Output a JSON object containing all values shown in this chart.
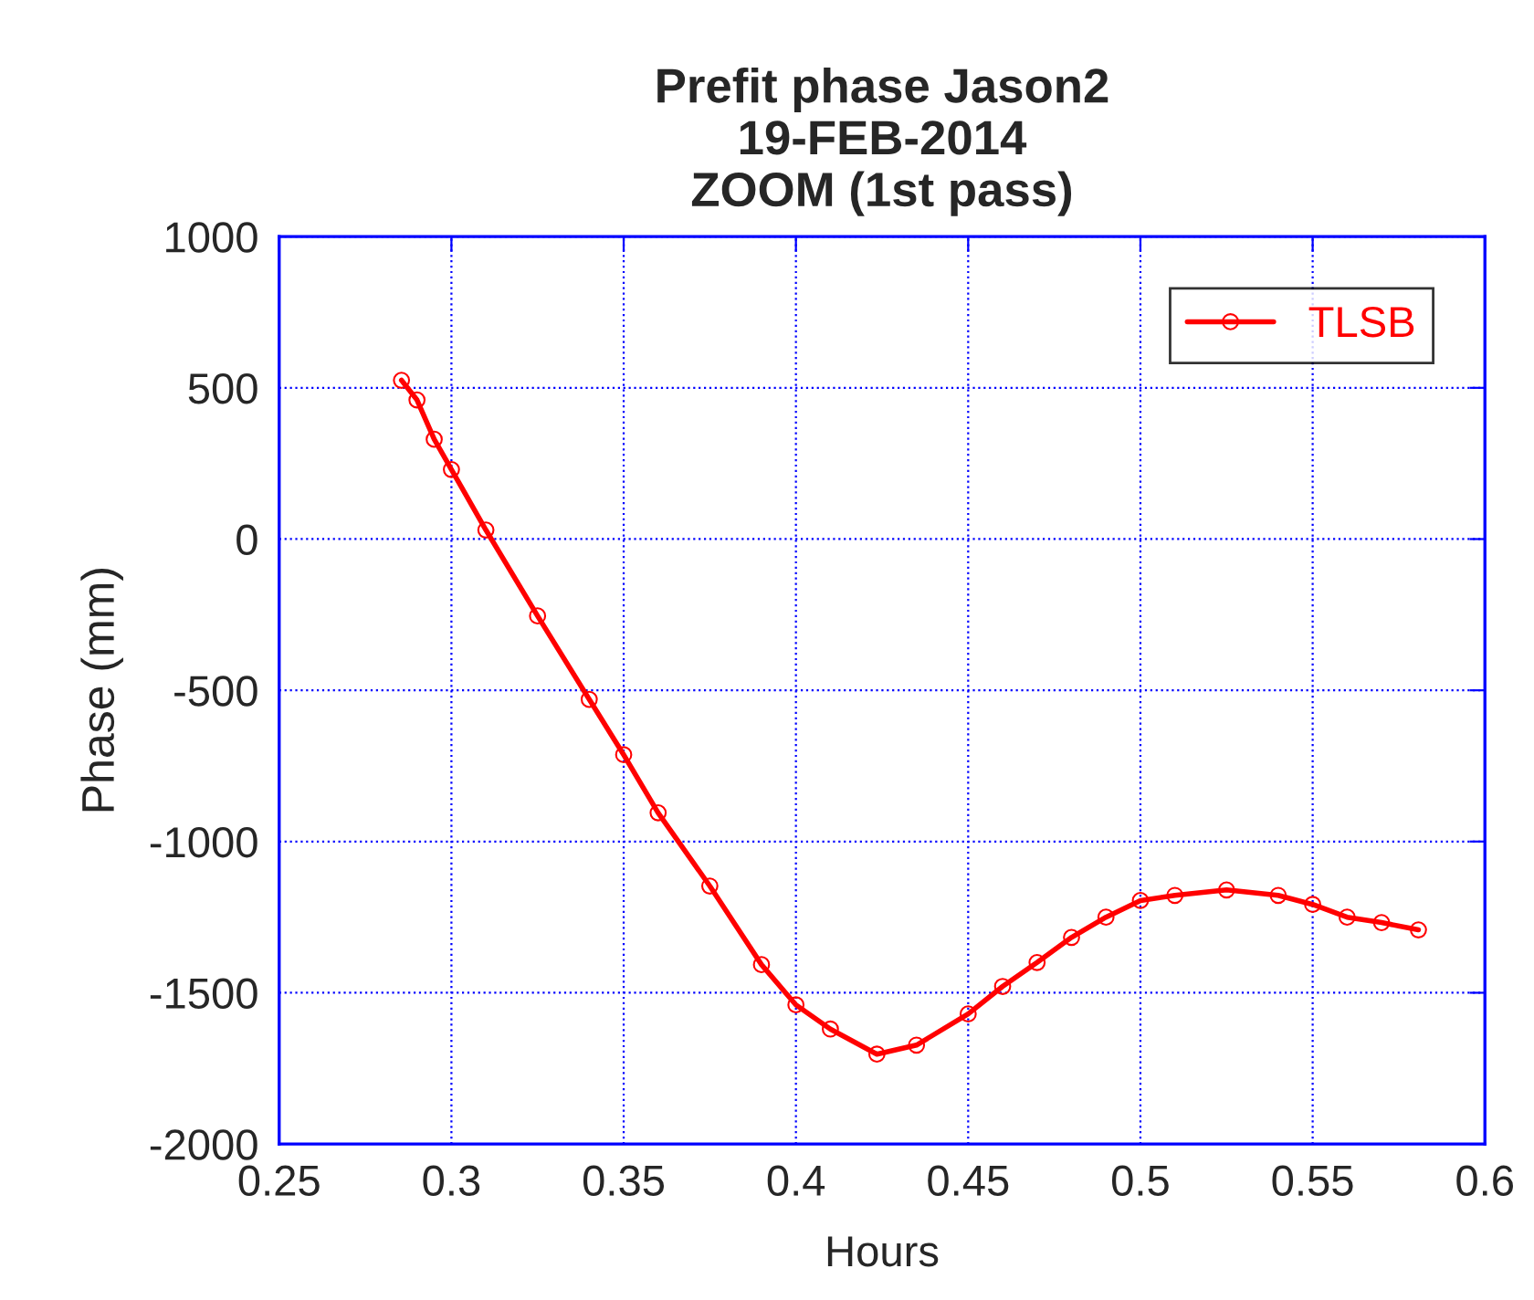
{
  "chart_data": {
    "type": "line",
    "title": "Prefit phase Jason2\n19-FEB-2014\nZOOM (1st pass)",
    "xlabel": "Hours",
    "ylabel": "Phase (mm)",
    "xlim": [
      0.25,
      0.6
    ],
    "xticks": [
      0.25,
      0.3,
      0.35,
      0.4,
      0.45,
      0.5,
      0.55,
      0.6
    ],
    "ylim": [
      -2000,
      1000
    ],
    "yticks": [
      -2000,
      -1500,
      -1000,
      -500,
      0,
      500,
      1000
    ],
    "grid": true,
    "legend": "top right",
    "marker": "circle",
    "line_style": "solid",
    "series": [
      {
        "name": "TLSB",
        "color": "#ff0000",
        "x": [
          0.2855,
          0.29,
          0.295,
          0.3,
          0.31,
          0.325,
          0.34,
          0.35,
          0.36,
          0.375,
          0.39,
          0.4,
          0.41,
          0.4235,
          0.435,
          0.45,
          0.46,
          0.47,
          0.48,
          0.49,
          0.5,
          0.51,
          0.525,
          0.54,
          0.55,
          0.56,
          0.57,
          0.5807
        ],
        "values": [
          525,
          460,
          330,
          230,
          30,
          -254,
          -530,
          -713,
          -905,
          -1147,
          -1407,
          -1540,
          -1620,
          -1703,
          -1673,
          -1570,
          -1479,
          -1400,
          -1317,
          -1250,
          -1195,
          -1178,
          -1160,
          -1178,
          -1208,
          -1250,
          -1268,
          -1292
        ]
      }
    ]
  }
}
